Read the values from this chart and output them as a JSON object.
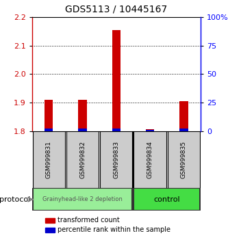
{
  "title": "GDS5113 / 10445167",
  "samples": [
    "GSM999831",
    "GSM999832",
    "GSM999833",
    "GSM999834",
    "GSM999835"
  ],
  "red_values": [
    1.91,
    1.91,
    2.155,
    1.807,
    1.905
  ],
  "blue_values": [
    2.0,
    2.0,
    2.0,
    1.0,
    2.0
  ],
  "ylim_left": [
    1.8,
    2.2
  ],
  "ylim_right": [
    0,
    100
  ],
  "yticks_left": [
    1.8,
    1.9,
    2.0,
    2.1,
    2.2
  ],
  "yticks_right": [
    0,
    25,
    50,
    75,
    100
  ],
  "ytick_labels_right": [
    "0",
    "25",
    "50",
    "75",
    "100%"
  ],
  "red_color": "#cc0000",
  "blue_color": "#0000cc",
  "bar_bottom": 1.8,
  "bar_width": 0.25,
  "group1_label": "Grainyhead-like 2 depletion",
  "group1_color": "#99ee99",
  "group1_samples": [
    0,
    1,
    2
  ],
  "group2_label": "control",
  "group2_color": "#44dd44",
  "group2_samples": [
    3,
    4
  ],
  "protocol_label": "protocol",
  "legend_red": "transformed count",
  "legend_blue": "percentile rank within the sample",
  "sample_box_color": "#cccccc",
  "dotted_lines": [
    1.9,
    2.0,
    2.1
  ]
}
